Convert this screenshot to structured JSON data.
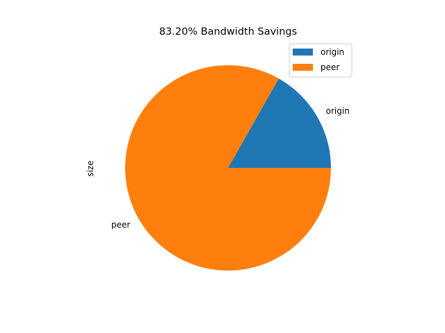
{
  "chart_data": {
    "type": "pie",
    "title": "83.20% Bandwidth Savings",
    "ylabel": "size",
    "categories": [
      "origin",
      "peer"
    ],
    "values": [
      16.8,
      83.2
    ],
    "colors": [
      "#1f77b4",
      "#ff7f0e"
    ],
    "start_angle_deg": 0,
    "direction": "counterclockwise",
    "legend": {
      "location": "upper right",
      "entries": [
        "origin",
        "peer"
      ]
    }
  }
}
